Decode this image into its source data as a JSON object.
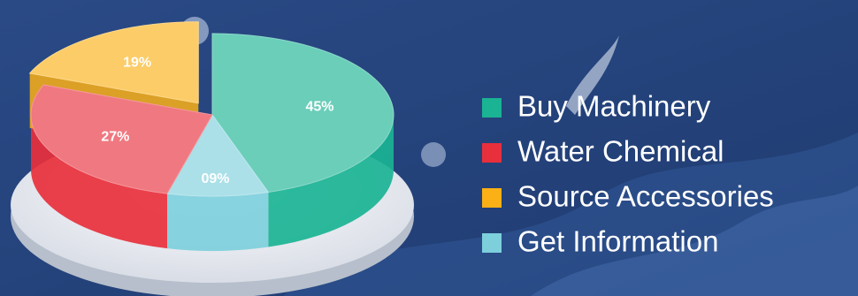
{
  "chart_data": {
    "type": "pie",
    "categories": [
      "Buy Machinery",
      "Water Chemical",
      "Source Accessories",
      "Get Information"
    ],
    "values": [
      45,
      27,
      19,
      9
    ],
    "value_labels": [
      "45%",
      "27%",
      "19%",
      "09%"
    ],
    "colors": [
      "#1ab394",
      "#e8303c",
      "#fbb016",
      "#7dcfdc"
    ],
    "legend": "right"
  }
}
